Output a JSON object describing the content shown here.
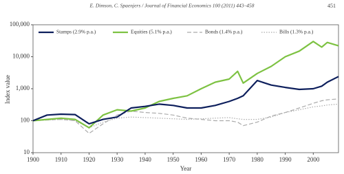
{
  "header": {
    "citation": "E. Dimson, C. Spaenjers / Journal of Financial Economics 100 (2011) 443–458",
    "page": "451"
  },
  "chart_data": {
    "type": "line",
    "xlabel": "Year",
    "ylabel": "Index value",
    "log_y": true,
    "legend": "top",
    "x": [
      1900,
      1905,
      1910,
      1915,
      1920,
      1925,
      1930,
      1935,
      1940,
      1945,
      1950,
      1955,
      1960,
      1965,
      1970,
      1973,
      1975,
      1980,
      1985,
      1990,
      1995,
      2000,
      2003,
      2005,
      2009
    ],
    "xlim": [
      1900,
      2009
    ],
    "xticks": [
      1900,
      1910,
      1920,
      1930,
      1940,
      1950,
      1960,
      1970,
      1980,
      1990,
      2000
    ],
    "ylim": [
      10,
      100000
    ],
    "yticks": [
      10,
      100,
      {
        "value": 1000,
        "label": "1,000"
      },
      {
        "value": 10000,
        "label": "10,000"
      },
      {
        "value": 100000,
        "label": "100,000"
      }
    ],
    "series": [
      {
        "name": "Stamps (2.9% p.a.)",
        "color": "#0d1f5c",
        "style": "solid",
        "values": [
          100,
          150,
          160,
          155,
          80,
          110,
          130,
          250,
          280,
          330,
          300,
          250,
          250,
          300,
          400,
          500,
          600,
          1800,
          1300,
          1100,
          950,
          1000,
          1200,
          1600,
          2400
        ]
      },
      {
        "name": "Equities (5.1% p.a.)",
        "color": "#7dc242",
        "style": "solid",
        "values": [
          100,
          110,
          120,
          110,
          60,
          150,
          220,
          200,
          250,
          400,
          500,
          600,
          1000,
          1600,
          2000,
          3500,
          1500,
          3000,
          5000,
          10000,
          15000,
          30000,
          20000,
          28000,
          22000
        ]
      },
      {
        "name": "Bonds (1.4% p.a.)",
        "color": "#aaaaaa",
        "style": "dashed",
        "values": [
          100,
          105,
          110,
          100,
          40,
          80,
          150,
          200,
          180,
          170,
          150,
          120,
          110,
          100,
          100,
          90,
          70,
          90,
          140,
          180,
          250,
          350,
          420,
          450,
          480
        ]
      },
      {
        "name": "Bills (1.3% p.a.)",
        "color": "#aaaaaa",
        "style": "dotted",
        "values": [
          100,
          105,
          110,
          100,
          60,
          90,
          120,
          130,
          125,
          120,
          115,
          110,
          115,
          120,
          125,
          115,
          110,
          110,
          130,
          180,
          220,
          270,
          290,
          310,
          330
        ]
      }
    ]
  }
}
